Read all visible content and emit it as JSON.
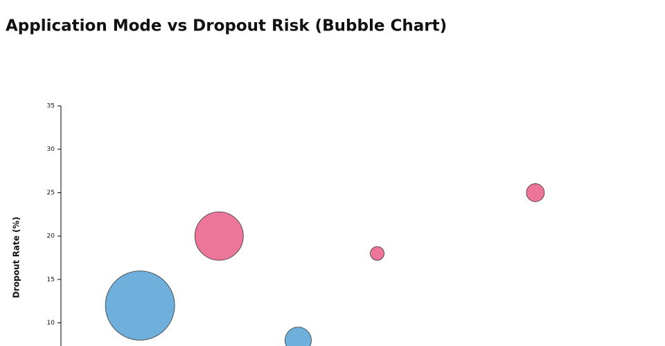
{
  "chart_data": {
    "type": "bubble",
    "title": "Application Mode vs Dropout Risk (Bubble Chart)",
    "y_label": "Dropout Rate (%)",
    "x": [
      1,
      2,
      3,
      4,
      6
    ],
    "values": [
      12,
      20,
      8,
      18,
      25
    ],
    "sizes": [
      2500,
      1225,
      361,
      100,
      169
    ],
    "colors": [
      "#6fafdc",
      "#ec7699",
      "#6fafdc",
      "#ec7699",
      "#ec7699"
    ],
    "xlim": [
      0,
      7
    ],
    "ylim": [
      0,
      35
    ],
    "yticks": [
      10,
      15,
      20,
      25,
      30,
      35
    ]
  }
}
